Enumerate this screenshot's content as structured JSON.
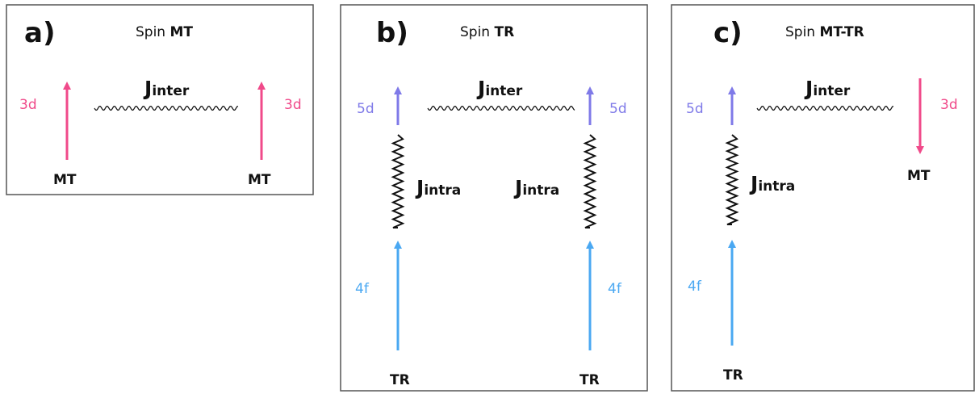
{
  "colors": {
    "pink": "#f04a8a",
    "lavender": "#7f7ae8",
    "blue": "#4aa8f2",
    "black": "#111111",
    "border": "#555555"
  },
  "panels": [
    {
      "letter": "a)",
      "title_prefix": "Spin ",
      "title_bold": "MT",
      "j_inter": "J",
      "j_inter_sub": "inter",
      "left_orbital": "3d",
      "right_orbital": "3d",
      "left_species": "MT",
      "right_species": "MT"
    },
    {
      "letter": "b)",
      "title_prefix": "Spin ",
      "title_bold": "TR",
      "j_inter": "J",
      "j_inter_sub": "inter",
      "j_intra_left": "J",
      "j_intra_left_sub": "intra",
      "j_intra_right": "J",
      "j_intra_right_sub": "intra",
      "left_top_orbital": "5d",
      "right_top_orbital": "5d",
      "left_bottom_orbital": "4f",
      "right_bottom_orbital": "4f",
      "left_species": "TR",
      "right_species": "TR"
    },
    {
      "letter": "c)",
      "title_prefix": "Spin ",
      "title_bold": "MT-TR",
      "j_inter": "J",
      "j_inter_sub": "inter",
      "j_intra": "J",
      "j_intra_sub": "intra",
      "left_top_orbital": "5d",
      "left_bottom_orbital": "4f",
      "right_orbital": "3d",
      "left_species": "TR",
      "right_species": "MT"
    }
  ]
}
